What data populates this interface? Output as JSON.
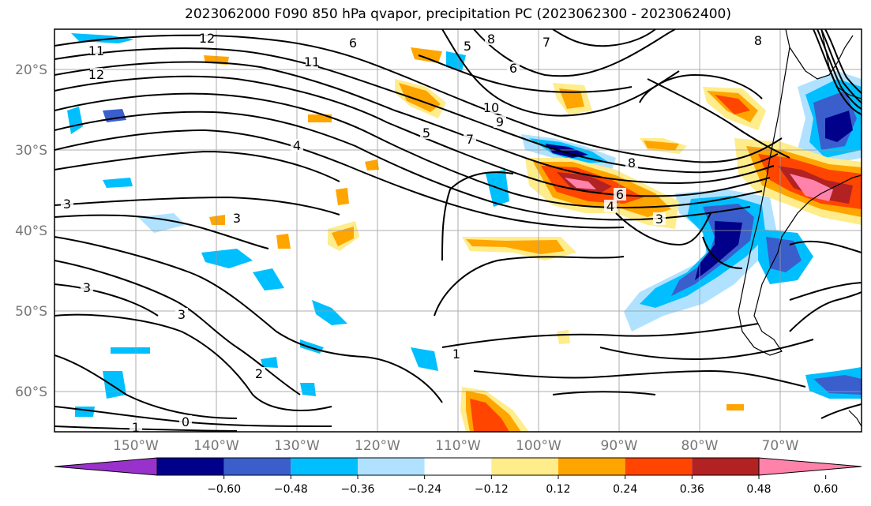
{
  "title": "2023062000 F090 850 hPa qvapor, precipitation PC (2023062300 - 2023062400)",
  "map": {
    "lon_labels": [
      "150°W",
      "140°W",
      "130°W",
      "120°W",
      "110°W",
      "100°W",
      "90°W",
      "80°W",
      "70°W"
    ],
    "lat_labels": [
      "20°S",
      "30°S",
      "40°S",
      "50°S",
      "60°S"
    ],
    "contour_labels": [
      "12",
      "11",
      "12",
      "11",
      "6",
      "8",
      "5",
      "6",
      "7",
      "8",
      "10",
      "5",
      "4",
      "9",
      "8",
      "7",
      "6",
      "4",
      "3",
      "3",
      "3",
      "3",
      "3",
      "2",
      "1",
      "0",
      "1"
    ]
  },
  "colorbar": {
    "ticks": [
      "−0.60",
      "−0.48",
      "−0.36",
      "−0.24",
      "−0.12",
      "0.12",
      "0.24",
      "0.36",
      "0.48",
      "0.60"
    ],
    "colors": [
      "#9932CC",
      "#00008B",
      "#3A5FCD",
      "#00BFFF",
      "#B0E2FF",
      "#FFFFFF",
      "#FFEC8B",
      "#FFA500",
      "#FF4500",
      "#B22222",
      "#FF82AB"
    ]
  }
}
